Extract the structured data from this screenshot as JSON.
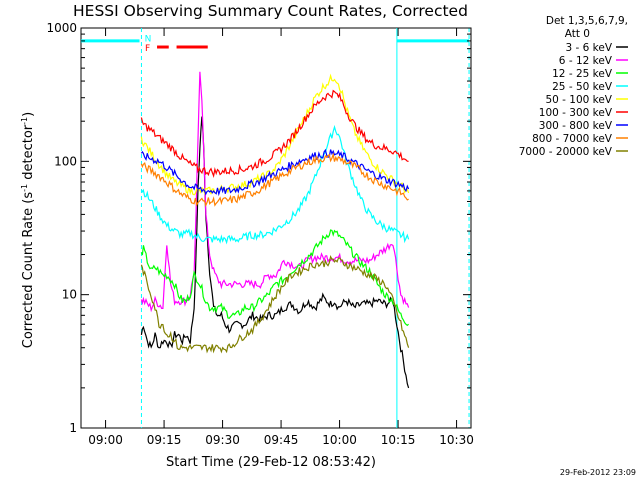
{
  "chart_data": {
    "type": "line",
    "title": "HESSI Observing Summary Count Rates, Corrected",
    "xlabel": "Start Time (29-Feb-12 08:53:42)",
    "ylabel": "Corrected Count Rate (s",
    "ylabel_sup": "-1",
    "ylabel_mid": " detector",
    "ylabel_sup2": "-1",
    "ylabel_end": ")",
    "x_unit": "minutes after 08:53:42",
    "xlim": [
      0,
      100
    ],
    "ylim": [
      1,
      1000
    ],
    "yscale": "log",
    "x_ticks": [
      {
        "x": 6.3,
        "label": "09:00"
      },
      {
        "x": 21.3,
        "label": "09:15"
      },
      {
        "x": 36.3,
        "label": "09:30"
      },
      {
        "x": 51.3,
        "label": "09:45"
      },
      {
        "x": 66.3,
        "label": "10:00"
      },
      {
        "x": 81.3,
        "label": "10:15"
      },
      {
        "x": 96.3,
        "label": "10:30"
      }
    ],
    "y_ticks": [
      {
        "y": 1,
        "label": "1"
      },
      {
        "y": 10,
        "label": "10"
      },
      {
        "y": 100,
        "label": "100"
      },
      {
        "y": 1000,
        "label": "1000"
      }
    ],
    "legend_header": [
      "Det 1,3,5,6,7,9,",
      "Att 0"
    ],
    "legend_position": "right",
    "series": [
      {
        "name": "3 - 6 keV",
        "color": "#000000",
        "x": [
          15.5,
          16,
          17,
          18,
          19,
          20,
          21,
          22,
          23,
          24,
          25,
          26,
          27,
          28,
          29,
          29.5,
          30,
          30.5,
          31,
          31.5,
          32,
          33,
          34,
          35,
          36,
          37,
          38,
          40,
          42,
          44,
          46,
          48,
          50,
          52,
          54,
          56,
          58,
          60,
          62,
          64,
          65,
          66,
          68,
          70,
          72,
          74,
          76,
          78,
          80,
          82,
          84
        ],
        "y": [
          5,
          6,
          4.5,
          4,
          5,
          4,
          4.5,
          4.5,
          4,
          5,
          5,
          4.5,
          5,
          4.5,
          8,
          20,
          60,
          130,
          220,
          120,
          40,
          15,
          8,
          7,
          7,
          6,
          5.5,
          6,
          6,
          7,
          6.5,
          7,
          7,
          8,
          8.5,
          7.5,
          9,
          8,
          9.5,
          8.5,
          9,
          8,
          9,
          8,
          8.5,
          8.5,
          9,
          8.5,
          9,
          4,
          2
        ]
      },
      {
        "name": "6 - 12 keV",
        "color": "#ff00ff",
        "x": [
          15.5,
          16,
          17,
          18,
          19,
          20,
          21,
          22,
          23,
          24,
          25,
          26,
          27,
          28,
          29,
          29.5,
          30,
          30.5,
          31,
          31.5,
          32,
          33,
          34,
          35,
          36,
          37,
          38,
          40,
          42,
          44,
          46,
          48,
          50,
          52,
          54,
          56,
          58,
          60,
          62,
          64,
          66,
          68,
          70,
          72,
          74,
          76,
          78,
          80,
          82,
          84
        ],
        "y": [
          9,
          9,
          8.5,
          8,
          9,
          8.5,
          8,
          25,
          12,
          9,
          9,
          9,
          9,
          10,
          15,
          40,
          150,
          450,
          300,
          120,
          40,
          20,
          15,
          13,
          12,
          12,
          12,
          12,
          12,
          12,
          12,
          14,
          14,
          18,
          17,
          16,
          18,
          19,
          19,
          19,
          19,
          18,
          18,
          18,
          18,
          20,
          22,
          25,
          10,
          8
        ]
      },
      {
        "name": "12 - 25 keV",
        "color": "#00ff00",
        "x": [
          15.5,
          16,
          17,
          18,
          19,
          20,
          21,
          22,
          23,
          24,
          25,
          26,
          27,
          28,
          29,
          30,
          31,
          32,
          33,
          34,
          36,
          38,
          40,
          42,
          44,
          46,
          48,
          50,
          52,
          54,
          56,
          58,
          60,
          62,
          64,
          66,
          68,
          70,
          72,
          74,
          76,
          78,
          80,
          82,
          84
        ],
        "y": [
          20,
          22,
          18,
          15,
          16,
          15,
          14,
          14,
          13,
          12,
          10,
          9,
          9,
          10,
          14,
          13,
          11,
          9,
          8,
          8,
          8,
          7,
          7,
          8,
          8,
          9,
          10,
          12,
          13,
          15,
          17,
          19,
          22,
          26,
          30,
          28,
          24,
          20,
          17,
          15,
          12,
          10,
          9,
          7,
          6
        ]
      },
      {
        "name": "25 - 50 keV",
        "color": "#00ffff",
        "x": [
          15.5,
          16,
          18,
          20,
          22,
          24,
          26,
          28,
          30,
          32,
          34,
          36,
          38,
          40,
          42,
          44,
          46,
          48,
          50,
          52,
          54,
          56,
          58,
          60,
          62,
          64,
          65,
          66,
          67,
          68,
          70,
          72,
          74,
          76,
          78,
          80,
          82,
          84
        ],
        "y": [
          62,
          60,
          50,
          40,
          33,
          30,
          28,
          29,
          27,
          26,
          26,
          26,
          26,
          26,
          27,
          28,
          28,
          29,
          31,
          34,
          38,
          44,
          55,
          75,
          110,
          150,
          180,
          160,
          130,
          100,
          70,
          50,
          40,
          35,
          32,
          30,
          28,
          26
        ]
      },
      {
        "name": "50 - 100 keV",
        "color": "#ffff00",
        "x": [
          15.5,
          16,
          18,
          20,
          22,
          24,
          26,
          28,
          30,
          32,
          34,
          36,
          38,
          40,
          42,
          44,
          46,
          48,
          50,
          52,
          54,
          56,
          58,
          60,
          62,
          64,
          65,
          66,
          67,
          68,
          70,
          72,
          74,
          76,
          78,
          80,
          82,
          84
        ],
        "y": [
          150,
          140,
          115,
          95,
          80,
          70,
          65,
          60,
          60,
          60,
          60,
          62,
          63,
          65,
          67,
          70,
          75,
          80,
          90,
          110,
          140,
          180,
          230,
          300,
          360,
          410,
          430,
          390,
          320,
          250,
          170,
          130,
          105,
          90,
          80,
          72,
          66,
          58
        ]
      },
      {
        "name": "100 - 300 keV",
        "color": "#ff0000",
        "x": [
          15.5,
          16,
          18,
          20,
          22,
          24,
          26,
          28,
          30,
          32,
          34,
          36,
          38,
          40,
          42,
          44,
          46,
          48,
          50,
          52,
          54,
          56,
          58,
          60,
          62,
          64,
          65,
          66,
          67,
          68,
          70,
          72,
          74,
          76,
          78,
          80,
          82,
          84
        ],
        "y": [
          200,
          190,
          170,
          150,
          135,
          120,
          105,
          95,
          88,
          85,
          83,
          84,
          85,
          86,
          88,
          92,
          98,
          105,
          115,
          130,
          150,
          180,
          220,
          260,
          300,
          320,
          325,
          310,
          280,
          240,
          190,
          160,
          140,
          130,
          125,
          120,
          110,
          100
        ]
      },
      {
        "name": "300 - 800 keV",
        "color": "#0000ff",
        "x": [
          15.5,
          16,
          18,
          20,
          22,
          24,
          26,
          28,
          30,
          32,
          34,
          36,
          38,
          40,
          42,
          44,
          46,
          48,
          50,
          52,
          54,
          56,
          58,
          60,
          62,
          64,
          65,
          66,
          67,
          68,
          70,
          72,
          74,
          76,
          78,
          80,
          82,
          84
        ],
        "y": [
          110,
          110,
          105,
          100,
          90,
          80,
          72,
          65,
          62,
          60,
          60,
          60,
          60,
          62,
          65,
          68,
          72,
          77,
          82,
          88,
          94,
          100,
          106,
          110,
          113,
          115,
          114,
          112,
          110,
          106,
          98,
          90,
          83,
          78,
          73,
          70,
          66,
          62
        ]
      },
      {
        "name": "800 - 7000 keV",
        "color": "#ff8000",
        "x": [
          15.5,
          16,
          18,
          20,
          22,
          24,
          26,
          28,
          30,
          32,
          34,
          36,
          38,
          40,
          42,
          44,
          46,
          48,
          50,
          52,
          54,
          56,
          58,
          60,
          62,
          64,
          65,
          66,
          67,
          68,
          70,
          72,
          74,
          76,
          78,
          80,
          82,
          84
        ],
        "y": [
          95,
          92,
          85,
          78,
          70,
          62,
          56,
          52,
          50,
          50,
          50,
          50,
          51,
          52,
          55,
          58,
          62,
          68,
          73,
          80,
          86,
          92,
          98,
          102,
          105,
          106,
          106,
          104,
          102,
          99,
          92,
          84,
          76,
          70,
          66,
          62,
          58,
          52
        ]
      },
      {
        "name": "7000 - 20000 keV",
        "color": "#808000",
        "x": [
          15.5,
          16,
          17,
          18,
          19,
          20,
          21,
          22,
          23,
          24,
          25,
          26,
          27,
          28,
          29,
          30,
          31,
          32,
          33,
          34,
          36,
          38,
          40,
          42,
          44,
          46,
          48,
          50,
          52,
          54,
          56,
          58,
          60,
          62,
          64,
          66,
          68,
          70,
          72,
          74,
          76,
          78,
          80,
          82,
          84
        ],
        "y": [
          16,
          15,
          12,
          10,
          8,
          6,
          6,
          5,
          5,
          4.5,
          4,
          4,
          4,
          4,
          4,
          4,
          4,
          4,
          4,
          4,
          4,
          4,
          4.5,
          5,
          5.5,
          6.5,
          8,
          10,
          12,
          14,
          15,
          16,
          17,
          17,
          18,
          18,
          17,
          16,
          15,
          14,
          13,
          12,
          9,
          6,
          4
        ]
      }
    ],
    "status_bars": [
      {
        "label": "",
        "color": "#00ffff",
        "x_start": 0,
        "x_end": 15,
        "level": 800
      },
      {
        "label": "",
        "color": "#00ffff",
        "x_start": 81,
        "x_end": 99.5,
        "level": 800
      },
      {
        "label": "N",
        "color": "#00ffff",
        "x_start": 16.3,
        "x_end": 16.3,
        "level": 850
      },
      {
        "label": "F",
        "color": "#ff0000",
        "x_start": 19.5,
        "x_end": 22.5,
        "level": 720
      },
      {
        "label": "",
        "color": "#ff0000",
        "x_start": 24.5,
        "x_end": 32.5,
        "level": 720
      }
    ],
    "vlines": [
      {
        "x": 15.5,
        "color": "#00ffff",
        "style": "dashed"
      },
      {
        "x": 81,
        "color": "#00ffff",
        "style": "solid"
      },
      {
        "x": 99.5,
        "color": "#00ffff",
        "style": "dashed"
      }
    ]
  },
  "footer_timestamp": "29-Feb-2012 23:09"
}
